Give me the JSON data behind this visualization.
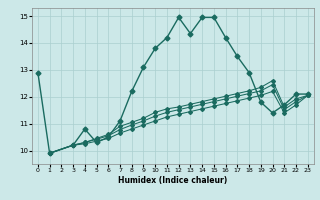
{
  "title": "",
  "xlabel": "Humidex (Indice chaleur)",
  "bg_color": "#cce8e8",
  "grid_color": "#aacfcf",
  "line_color": "#1a6b60",
  "xlim": [
    -0.5,
    23.5
  ],
  "ylim": [
    9.5,
    15.3
  ],
  "yticks": [
    10,
    11,
    12,
    13,
    14,
    15
  ],
  "xticks": [
    0,
    1,
    2,
    3,
    4,
    5,
    6,
    7,
    8,
    9,
    10,
    11,
    12,
    13,
    14,
    15,
    16,
    17,
    18,
    19,
    20,
    21,
    22,
    23
  ],
  "lines": [
    {
      "x": [
        0,
        1,
        3,
        4,
        5,
        6,
        7,
        8,
        9,
        10,
        11,
        12,
        13,
        14,
        15,
        16,
        17,
        18,
        19,
        20,
        21,
        22,
        23
      ],
      "y": [
        12.9,
        9.9,
        10.2,
        10.8,
        10.3,
        10.5,
        11.1,
        12.2,
        13.1,
        13.8,
        14.2,
        14.95,
        14.35,
        14.95,
        14.95,
        14.2,
        13.5,
        12.9,
        11.8,
        11.4,
        11.7,
        12.1,
        12.1
      ]
    },
    {
      "x": [
        1,
        3,
        4,
        5,
        6,
        7,
        8,
        9,
        10,
        11,
        12,
        13,
        14,
        15,
        16,
        17,
        18,
        19,
        20,
        21,
        22,
        23
      ],
      "y": [
        9.9,
        10.2,
        10.25,
        10.35,
        10.45,
        10.65,
        10.8,
        10.95,
        11.1,
        11.25,
        11.35,
        11.45,
        11.55,
        11.65,
        11.75,
        11.85,
        11.95,
        12.05,
        12.2,
        11.4,
        11.7,
        12.05
      ]
    },
    {
      "x": [
        1,
        3,
        4,
        5,
        6,
        7,
        8,
        9,
        10,
        11,
        12,
        13,
        14,
        15,
        16,
        17,
        18,
        19,
        20,
        21,
        22,
        23
      ],
      "y": [
        9.9,
        10.2,
        10.3,
        10.42,
        10.55,
        10.78,
        10.95,
        11.1,
        11.28,
        11.42,
        11.52,
        11.62,
        11.72,
        11.82,
        11.92,
        12.02,
        12.12,
        12.22,
        12.45,
        11.52,
        11.82,
        12.05
      ]
    },
    {
      "x": [
        1,
        3,
        4,
        5,
        6,
        7,
        8,
        9,
        10,
        11,
        12,
        13,
        14,
        15,
        16,
        17,
        18,
        19,
        20,
        21,
        22,
        23
      ],
      "y": [
        9.9,
        10.2,
        10.3,
        10.45,
        10.6,
        10.9,
        11.05,
        11.2,
        11.42,
        11.55,
        11.62,
        11.72,
        11.82,
        11.92,
        12.02,
        12.12,
        12.22,
        12.35,
        12.6,
        11.62,
        11.92,
        12.05
      ]
    }
  ]
}
